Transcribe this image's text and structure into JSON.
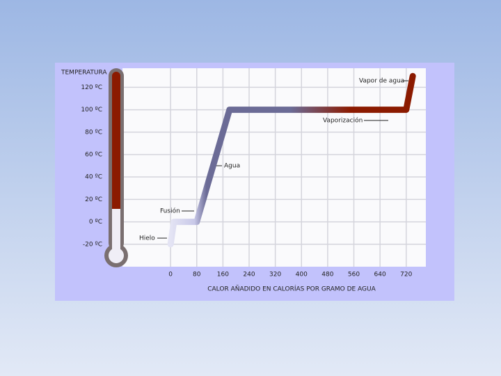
{
  "chart_data": {
    "type": "line",
    "ylabel": "TEMPERATURA",
    "xlabel": "CALOR AÑADIDO EN CALORÍAS POR GRAMO DE AGUA",
    "x": [
      0,
      10,
      80,
      180,
      720,
      740
    ],
    "values": [
      -20,
      0,
      0,
      100,
      100,
      130
    ],
    "color": "#6b6b96",
    "xlim": [
      -147,
      780
    ],
    "ylim": [
      -40,
      137
    ],
    "xticks": [
      0,
      80,
      160,
      240,
      320,
      400,
      480,
      560,
      640,
      720
    ],
    "yticks": [
      {
        "value": 120,
        "label": "120 ºC"
      },
      {
        "value": 100,
        "label": "100 ºC"
      },
      {
        "value": 80,
        "label": "80 ºC"
      },
      {
        "value": 60,
        "label": "60 ºC"
      },
      {
        "value": 40,
        "label": "40 ºC"
      },
      {
        "value": 20,
        "label": "20 ºC"
      },
      {
        "value": 0,
        "label": "0 ºC"
      },
      {
        "value": -20,
        "label": "-20 ºC"
      }
    ],
    "grid": true,
    "annotations": [
      "Vapor de agua",
      "Vaporización",
      "Agua",
      "Fusión",
      "Hielo"
    ]
  }
}
